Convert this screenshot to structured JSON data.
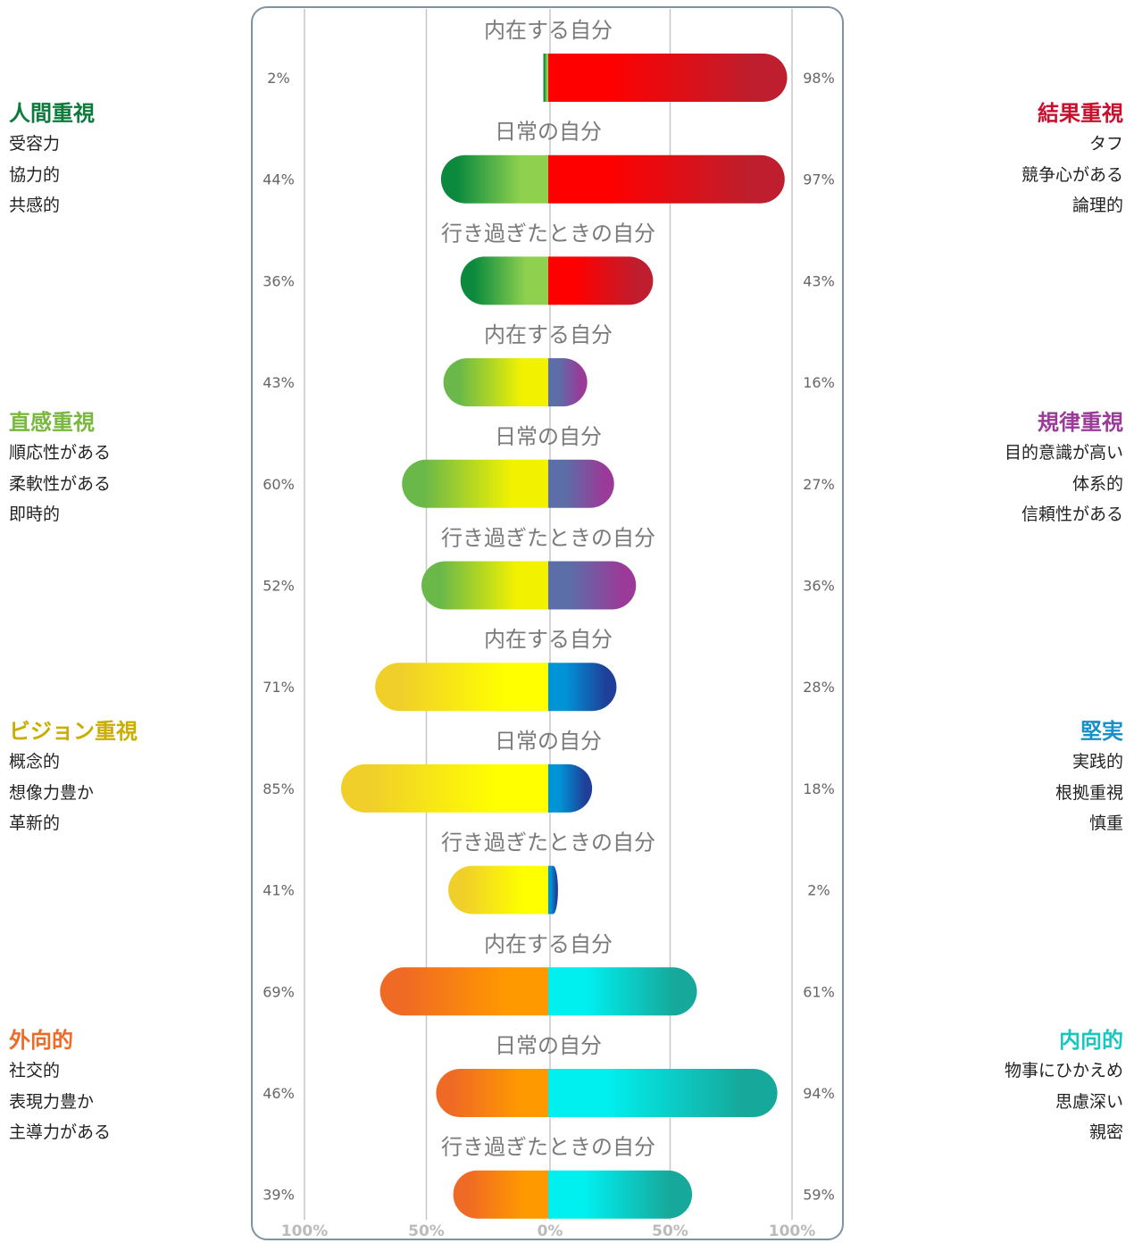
{
  "colors": {
    "frame": "#7f93a3",
    "grid": "#c7c7c7",
    "caption": "#7a7a7a",
    "value": "#666666"
  },
  "left_groups": [
    {
      "title": "人間重視",
      "color": "#0b7a3b",
      "traits": [
        "受容力",
        "協力的",
        "共感的"
      ]
    },
    {
      "title": "直感重視",
      "color": "#79b83f",
      "traits": [
        "順応性がある",
        "柔軟性がある",
        "即時的"
      ]
    },
    {
      "title": "ビジョン重視",
      "color": "#c9ae00",
      "traits": [
        "概念的",
        "想像力豊か",
        "革新的"
      ]
    },
    {
      "title": "外向的",
      "color": "#ef6a24",
      "traits": [
        "社交的",
        "表現力豊か",
        "主導力がある"
      ]
    }
  ],
  "right_groups": [
    {
      "title": "結果重視",
      "color": "#c8102e",
      "traits": [
        "タフ",
        "競争心がある",
        "論理的"
      ]
    },
    {
      "title": "規律重視",
      "color": "#9b3a98",
      "traits": [
        "目的意識が高い",
        "体系的",
        "信頼性がある"
      ]
    },
    {
      "title": "堅実",
      "color": "#1a90c8",
      "traits": [
        "実践的",
        "根拠重視",
        "慎重"
      ]
    },
    {
      "title": "内向的",
      "color": "#16c8c0",
      "traits": [
        "物事にひかえめ",
        "思慮深い",
        "親密"
      ]
    }
  ],
  "chart_data": {
    "type": "bar",
    "orientation": "horizontal-diverging",
    "xlim": [
      -100,
      100
    ],
    "x_ticks": [
      "100%",
      "50%",
      "0%",
      "50%",
      "100%"
    ],
    "gradients": [
      {
        "left": [
          "#0b8a3d",
          "#8fd14f"
        ],
        "right": [
          "#ff0000",
          "#be1e2d"
        ]
      },
      {
        "left": [
          "#6ab84a",
          "#f2f200"
        ],
        "right": [
          "#5b6ea8",
          "#9b3a98"
        ]
      },
      {
        "left": [
          "#f0cf2a",
          "#ffff00"
        ],
        "right": [
          "#0094d6",
          "#1f3f99"
        ]
      },
      {
        "left": [
          "#ef6a24",
          "#ff9900"
        ],
        "right": [
          "#00f0f0",
          "#16a89a"
        ]
      }
    ],
    "rows": [
      {
        "caption": "内在する自分",
        "left": 2,
        "right": 98,
        "left_label": "2%",
        "right_label": "98%",
        "group": 0
      },
      {
        "caption": "日常の自分",
        "left": 44,
        "right": 97,
        "left_label": "44%",
        "right_label": "97%",
        "group": 0
      },
      {
        "caption": "行き過ぎたときの自分",
        "left": 36,
        "right": 43,
        "left_label": "36%",
        "right_label": "43%",
        "group": 0
      },
      {
        "caption": "内在する自分",
        "left": 43,
        "right": 16,
        "left_label": "43%",
        "right_label": "16%",
        "group": 1
      },
      {
        "caption": "日常の自分",
        "left": 60,
        "right": 27,
        "left_label": "60%",
        "right_label": "27%",
        "group": 1
      },
      {
        "caption": "行き過ぎたときの自分",
        "left": 52,
        "right": 36,
        "left_label": "52%",
        "right_label": "36%",
        "group": 1
      },
      {
        "caption": "内在する自分",
        "left": 71,
        "right": 28,
        "left_label": "71%",
        "right_label": "28%",
        "group": 2
      },
      {
        "caption": "日常の自分",
        "left": 85,
        "right": 18,
        "left_label": "85%",
        "right_label": "18%",
        "group": 2
      },
      {
        "caption": "行き過ぎたときの自分",
        "left": 41,
        "right": 2,
        "left_label": "41%",
        "right_label": "2%",
        "group": 2
      },
      {
        "caption": "内在する自分",
        "left": 69,
        "right": 61,
        "left_label": "69%",
        "right_label": "61%",
        "group": 3
      },
      {
        "caption": "日常の自分",
        "left": 46,
        "right": 94,
        "left_label": "46%",
        "right_label": "94%",
        "group": 3
      },
      {
        "caption": "行き過ぎたときの自分",
        "left": 39,
        "right": 59,
        "left_label": "39%",
        "right_label": "59%",
        "group": 3
      }
    ]
  }
}
